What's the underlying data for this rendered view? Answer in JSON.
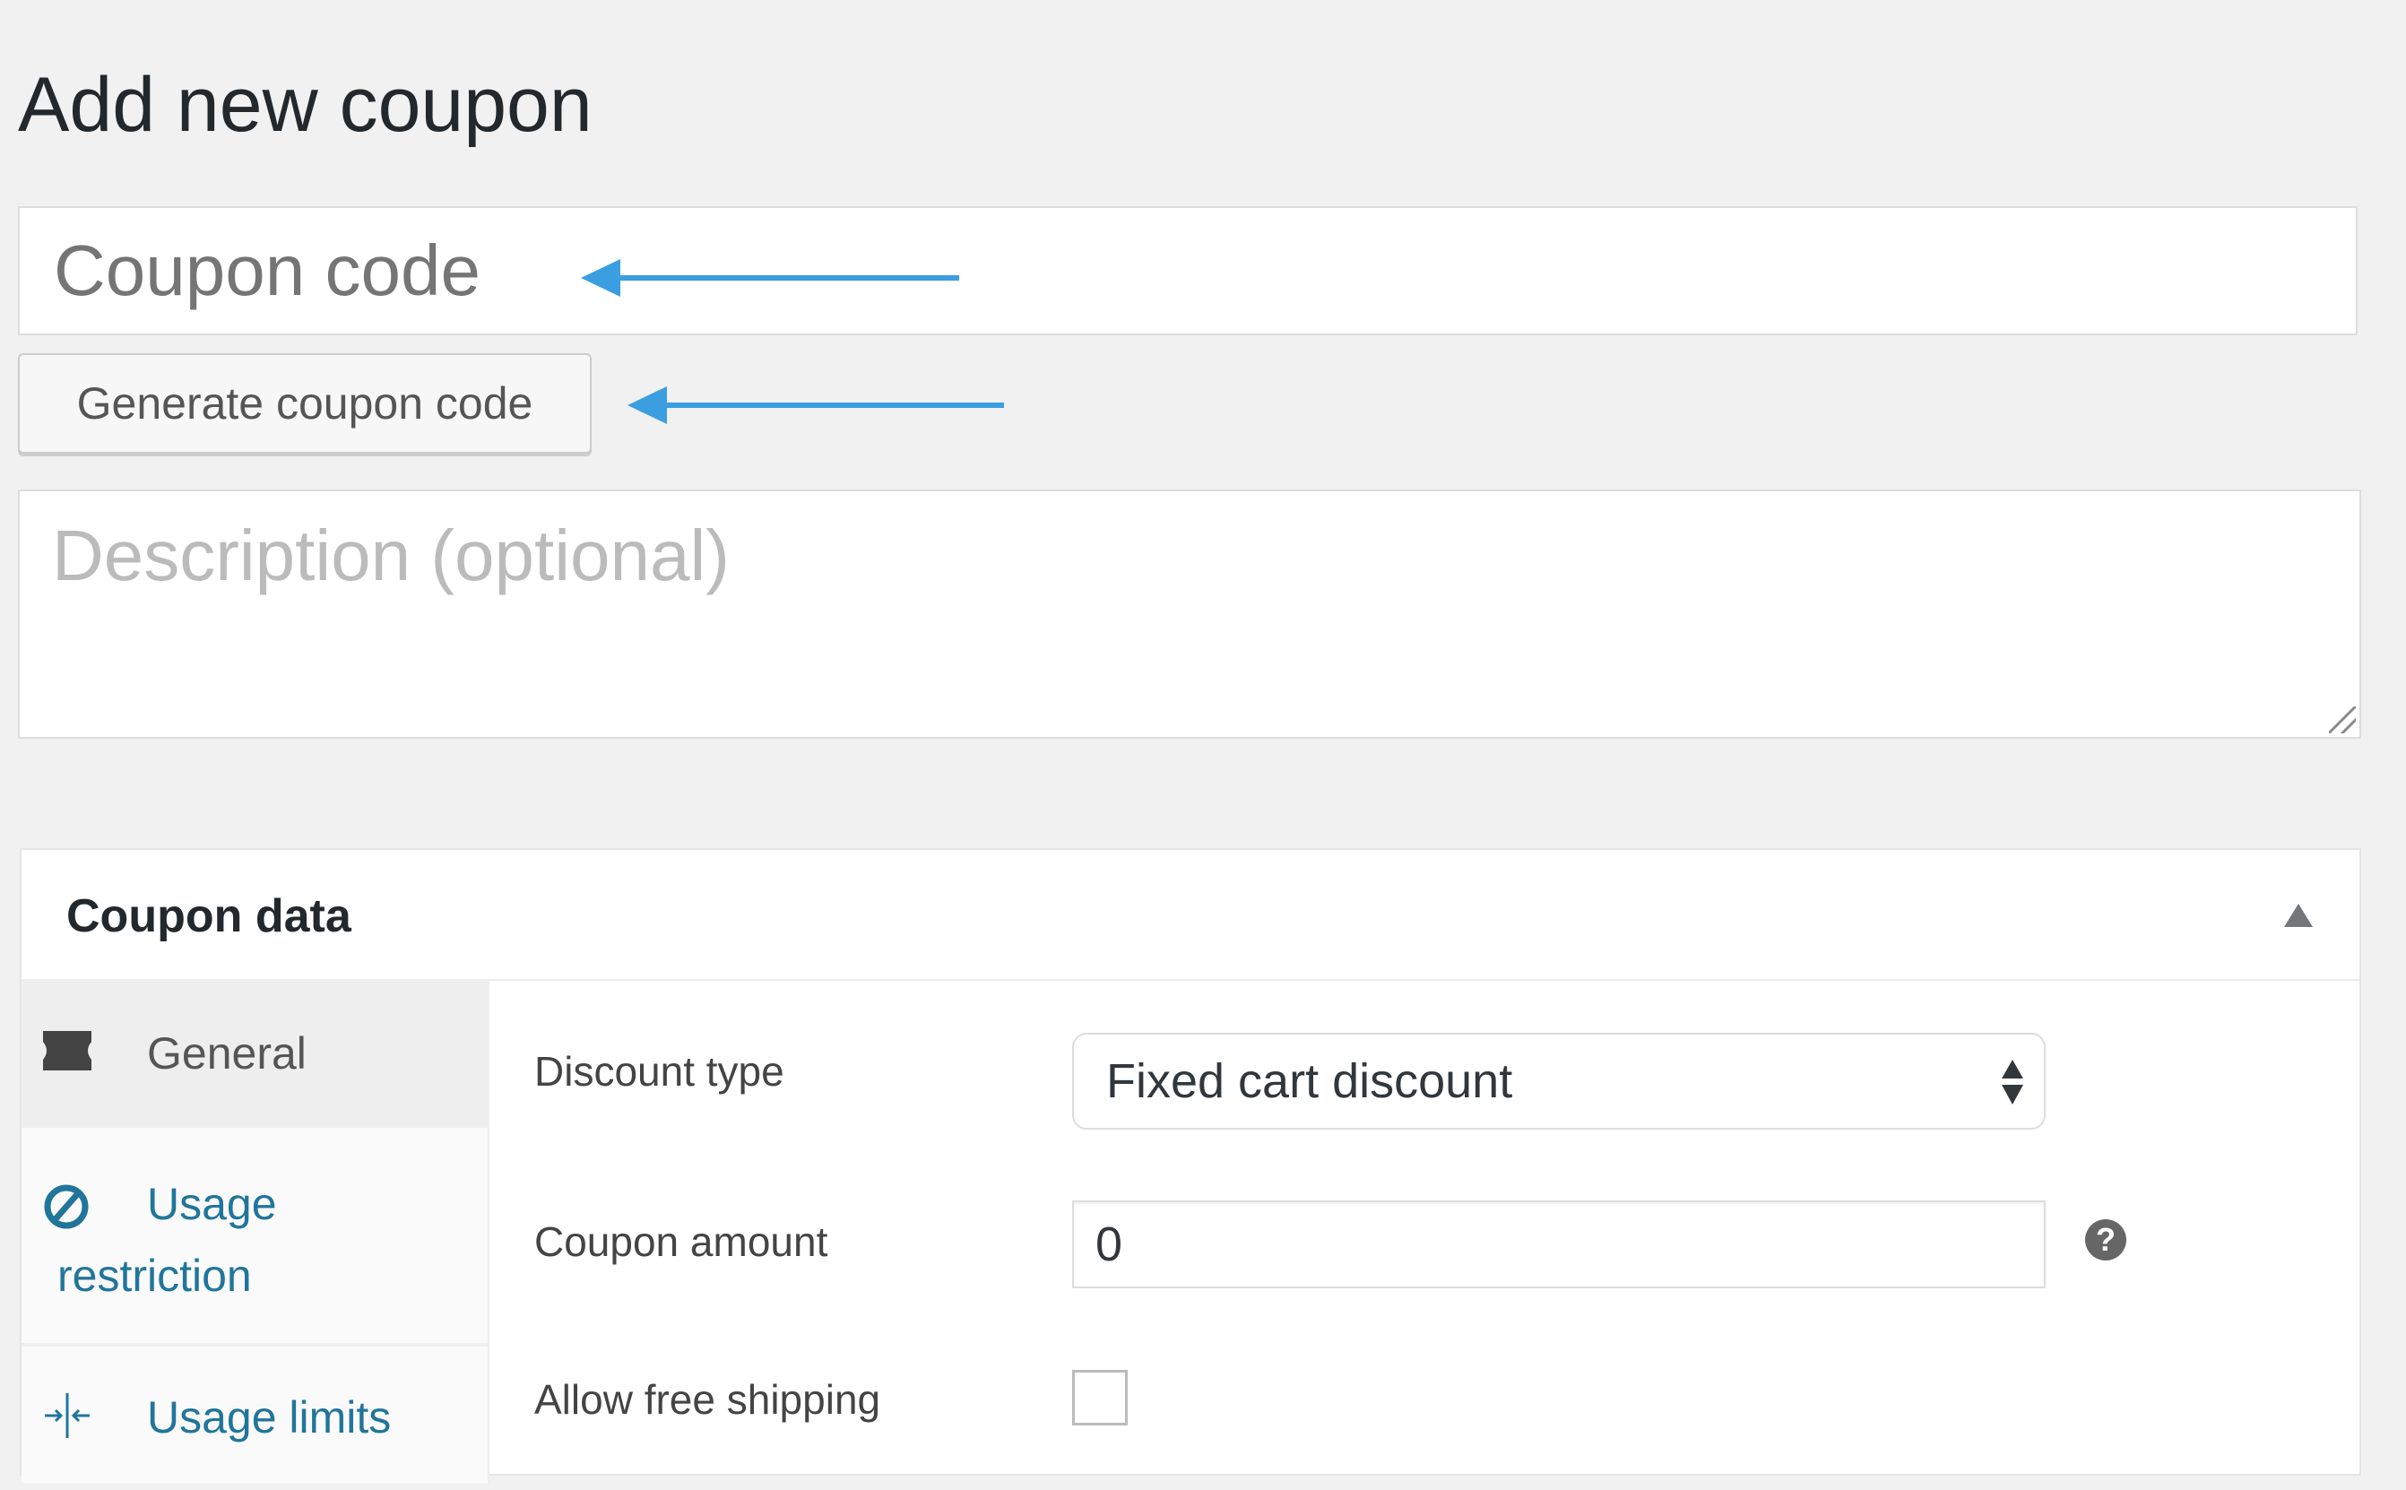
{
  "page": {
    "title": "Add new coupon"
  },
  "coupon_code": {
    "placeholder": "Coupon code"
  },
  "generate_button": {
    "label": "Generate coupon code"
  },
  "description": {
    "placeholder": "Description (optional)"
  },
  "annotation_color": "#3a9ee0",
  "coupon_data": {
    "title": "Coupon data",
    "tabs": [
      {
        "label": "General",
        "icon": "ticket-icon",
        "active": true
      },
      {
        "label_line1": "Usage",
        "label_line2": "restriction",
        "icon": "no-entry-icon"
      },
      {
        "label": "Usage limits",
        "icon": "limits-icon"
      }
    ],
    "fields": {
      "discount_type": {
        "label": "Discount type",
        "value": "Fixed cart discount"
      },
      "coupon_amount": {
        "label": "Coupon amount",
        "value": "0"
      },
      "free_shipping": {
        "label": "Allow free shipping",
        "checked": false
      }
    },
    "link_color": "#21759b"
  }
}
